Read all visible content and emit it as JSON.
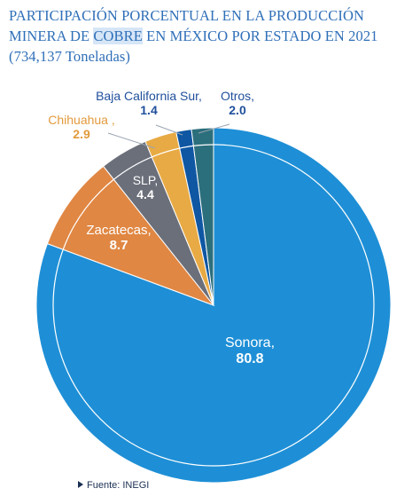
{
  "title": {
    "line1": "PARTICIPACIÓN PORCENTUAL EN LA PRODUCCIÓN",
    "line2_before": "MINERA DE ",
    "line2_highlight": "COBRE",
    "line2_after": " EN MÉXICO POR ESTADO EN 2021",
    "line3": "(734,137 Toneladas)"
  },
  "chart_data": {
    "type": "pie",
    "title": "PARTICIPACIÓN PORCENTUAL EN LA PRODUCCIÓN MINERA DE COBRE EN MÉXICO POR ESTADO EN 2021 (734,137 Toneladas)",
    "slices": [
      {
        "label": "Sonora,",
        "value": 80.8,
        "display": "80.8",
        "color": "#1e8fd6"
      },
      {
        "label": "Zacatecas,",
        "value": 8.7,
        "display": "8.7",
        "color": "#e08743"
      },
      {
        "label": "SLP,",
        "value": 4.4,
        "display": "4.4",
        "color": "#6b6f7a"
      },
      {
        "label": "Chihuahua ,",
        "value": 2.9,
        "display": "2.9",
        "color": "#e8aa44"
      },
      {
        "label": "Baja California Sur,",
        "value": 1.4,
        "display": "1.4",
        "color": "#0f57a3"
      },
      {
        "label": "Otros,",
        "value": 2.0,
        "display": "2.0",
        "color": "#2c6f7c"
      }
    ]
  },
  "source": "Fuente: INEGI"
}
